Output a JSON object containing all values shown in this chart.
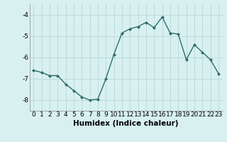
{
  "x": [
    0,
    1,
    2,
    3,
    4,
    5,
    6,
    7,
    8,
    9,
    10,
    11,
    12,
    13,
    14,
    15,
    16,
    17,
    18,
    19,
    20,
    21,
    22,
    23
  ],
  "y": [
    -6.6,
    -6.7,
    -6.85,
    -6.85,
    -7.25,
    -7.55,
    -7.85,
    -8.0,
    -7.95,
    -7.0,
    -5.85,
    -4.85,
    -4.65,
    -4.55,
    -4.35,
    -4.6,
    -4.1,
    -4.85,
    -4.9,
    -6.1,
    -5.4,
    -5.75,
    -6.1,
    -6.75
  ],
  "line_color": "#2d6e6e",
  "marker": "D",
  "marker_size": 2.0,
  "bg_color": "#d8f0f0",
  "grid_color": "#b8d8d8",
  "xlabel": "Humidex (Indice chaleur)",
  "xlim": [
    -0.5,
    23.5
  ],
  "ylim": [
    -8.5,
    -3.5
  ],
  "yticks": [
    -8,
    -7,
    -6,
    -5,
    -4
  ],
  "xticks": [
    0,
    1,
    2,
    3,
    4,
    5,
    6,
    7,
    8,
    9,
    10,
    11,
    12,
    13,
    14,
    15,
    16,
    17,
    18,
    19,
    20,
    21,
    22,
    23
  ],
  "tick_fontsize": 6.5,
  "xlabel_fontsize": 7.5,
  "line_width": 1.0
}
